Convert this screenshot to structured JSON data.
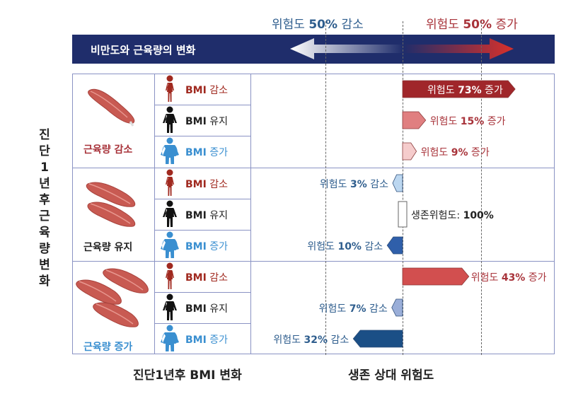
{
  "colors": {
    "increase_text": "#a8333a",
    "decrease_text": "#2f5e8e",
    "banner": "#1f2d6b",
    "muscle": "#c85a52",
    "person_lose": "#a0291f",
    "person_keep": "#111111",
    "person_gain": "#3a8fd0"
  },
  "header": {
    "decrease_prefix": "위험도",
    "decrease_value": "50%",
    "decrease_suffix": "감소",
    "increase_prefix": "위험도",
    "increase_value": "50%",
    "increase_suffix": "증가",
    "banner_title": "비만도와 근육량의 변화"
  },
  "side_title": "진단1년후근육량변화",
  "bottom": {
    "left_title": "진단1년후 BMI 변화",
    "right_title": "생존 상대 위험도"
  },
  "groups": [
    {
      "label": "근육량 감소",
      "label_color": "#a8333a",
      "rows": [
        {
          "bmi": "BMI",
          "change": "감소",
          "person": "lose",
          "direction": "increase",
          "percent": 73,
          "label_prefix": "위험도",
          "label_value": "73%",
          "label_suffix": "증가",
          "bar_color": "#a0262a"
        },
        {
          "bmi": "BMI",
          "change": "유지",
          "person": "keep",
          "direction": "increase",
          "percent": 15,
          "label_prefix": "위험도",
          "label_value": "15%",
          "label_suffix": "증가",
          "bar_color": "#e07f80"
        },
        {
          "bmi": "BMI",
          "change": "증가",
          "person": "gain",
          "direction": "increase",
          "percent": 9,
          "label_prefix": "위험도",
          "label_value": "9%",
          "label_suffix": "증가",
          "bar_color": "#f5cccc"
        }
      ]
    },
    {
      "label": "근육량 유지",
      "label_color": "#222222",
      "rows": [
        {
          "bmi": "BMI",
          "change": "감소",
          "person": "lose",
          "direction": "decrease",
          "percent": 3,
          "label_prefix": "위험도",
          "label_value": "3%",
          "label_suffix": "감소",
          "bar_color": "#bcd7f0"
        },
        {
          "bmi": "BMI",
          "change": "유지",
          "person": "keep",
          "direction": "reference",
          "percent": 0,
          "label_prefix": "생존위험도:",
          "label_value": "100%",
          "label_suffix": "",
          "bar_color": "#ffffff"
        },
        {
          "bmi": "BMI",
          "change": "증가",
          "person": "gain",
          "direction": "decrease",
          "percent": 10,
          "label_prefix": "위험도",
          "label_value": "10%",
          "label_suffix": "감소",
          "bar_color": "#2f5faa"
        }
      ]
    },
    {
      "label": "근육량 증가",
      "label_color": "#3a8fd0",
      "rows": [
        {
          "bmi": "BMI",
          "change": "감소",
          "person": "lose",
          "direction": "increase",
          "percent": 43,
          "label_prefix": "위험도",
          "label_value": "43%",
          "label_suffix": "증가",
          "bar_color": "#d24f4f"
        },
        {
          "bmi": "BMI",
          "change": "유지",
          "person": "keep",
          "direction": "decrease",
          "percent": 7,
          "label_prefix": "위험도",
          "label_value": "7%",
          "label_suffix": "감소",
          "bar_color": "#9aaed8"
        },
        {
          "bmi": "BMI",
          "change": "증가",
          "person": "gain",
          "direction": "decrease",
          "percent": 32,
          "label_prefix": "위험도",
          "label_value": "32%",
          "label_suffix": "감소",
          "bar_color": "#1b4f86"
        }
      ]
    }
  ]
}
